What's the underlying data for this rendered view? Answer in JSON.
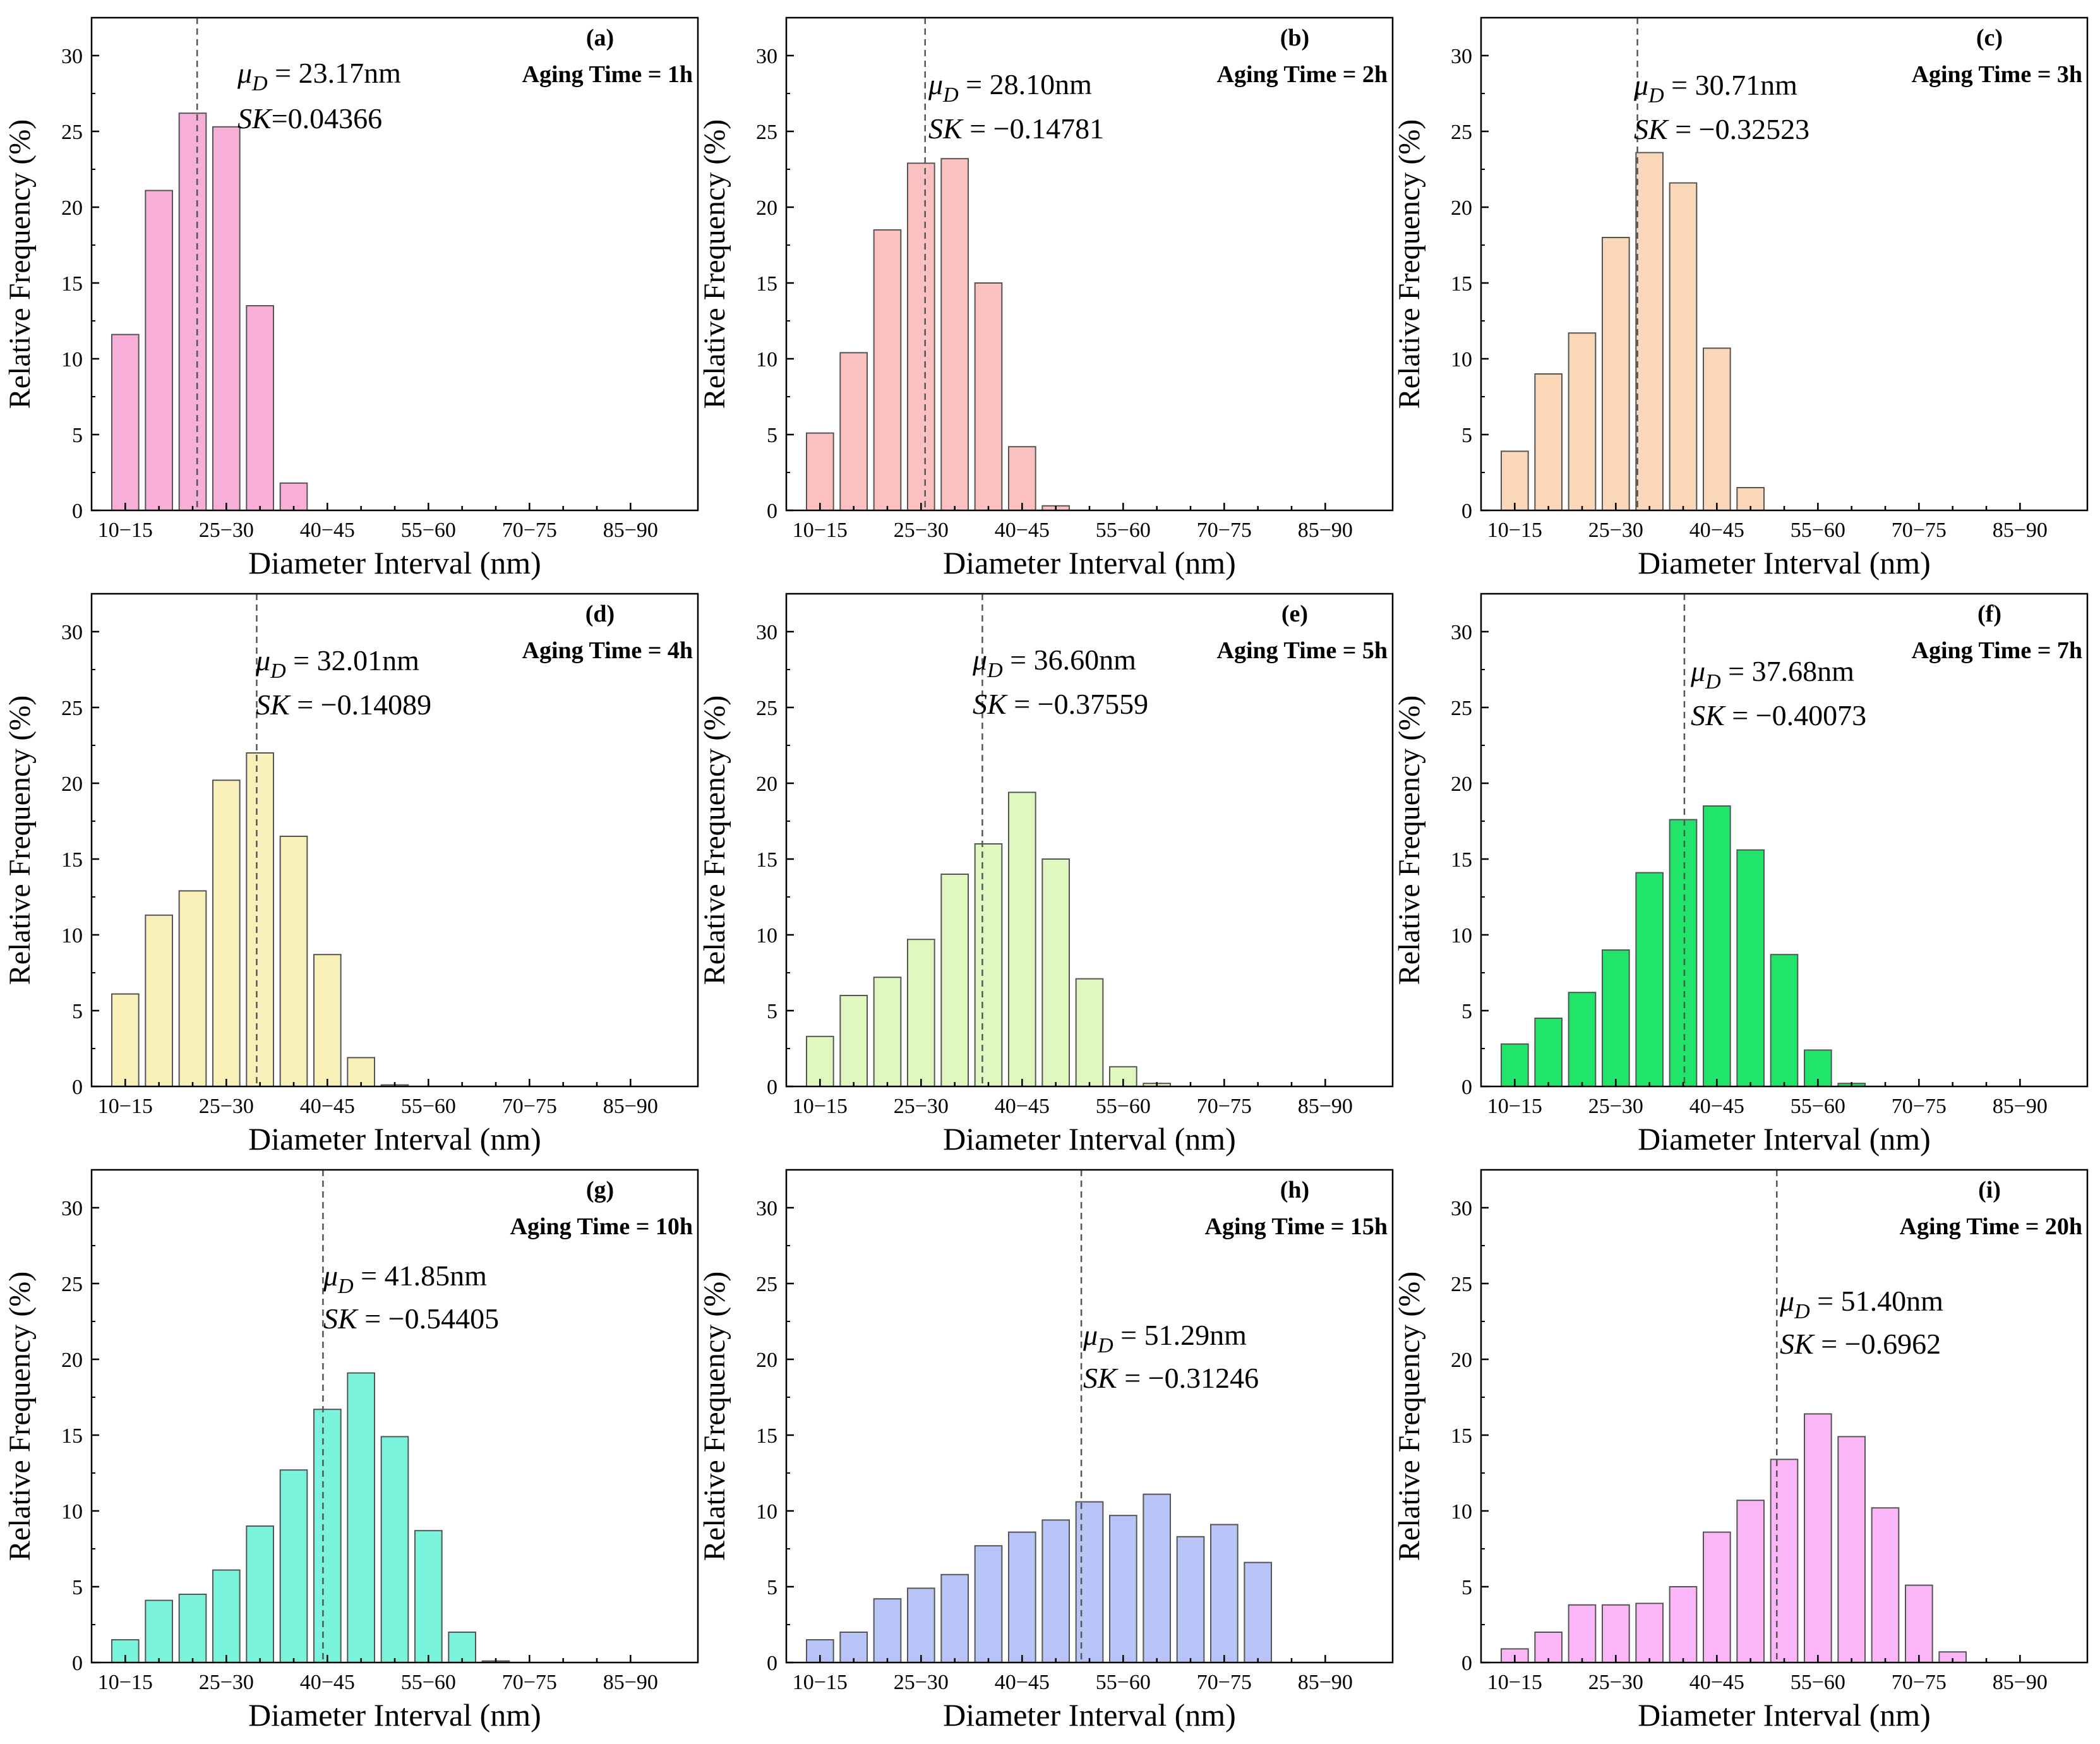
{
  "chart_data": [
    {
      "type": "bar",
      "panel": "(a)",
      "title": "Aging Time = 1h",
      "xlabel": "Diameter Interval (nm)",
      "ylabel": "Relative Frequency (%)",
      "ylim": [
        0,
        32.5
      ],
      "yticks": [
        "0",
        "5",
        "10",
        "15",
        "20",
        "25",
        "30"
      ],
      "xtick_labels": [
        "10−15",
        "25−30",
        "40−45",
        "55−60",
        "70−75",
        "85−90"
      ],
      "categories": [
        "10-15",
        "15-20",
        "20-25",
        "25-30",
        "30-35",
        "35-40",
        "40-45",
        "45-50",
        "50-55",
        "55-60",
        "60-65",
        "65-70",
        "70-75",
        "75-80",
        "80-85",
        "85-90"
      ],
      "values": [
        11.6,
        21.1,
        26.2,
        25.3,
        13.5,
        1.8,
        0,
        0,
        0,
        0,
        0,
        0,
        0,
        0,
        0,
        0
      ],
      "mean_line": 23.17,
      "color": "#f7aed9",
      "mu_symbol": "μ",
      "mu_sub": "D",
      "mu_text": " = 23.17nm",
      "sk_symbol": "SK",
      "sk_text": "=0.04366"
    },
    {
      "type": "bar",
      "panel": "(b)",
      "title": "Aging Time = 2h",
      "xlabel": "Diameter Interval (nm)",
      "ylabel": "Relative Frequency (%)",
      "ylim": [
        0,
        32.5
      ],
      "yticks": [
        "0",
        "5",
        "10",
        "15",
        "20",
        "25",
        "30"
      ],
      "xtick_labels": [
        "10−15",
        "25−30",
        "40−45",
        "55−60",
        "70−75",
        "85−90"
      ],
      "categories": [
        "10-15",
        "15-20",
        "20-25",
        "25-30",
        "30-35",
        "35-40",
        "40-45",
        "45-50",
        "50-55",
        "55-60",
        "60-65",
        "65-70",
        "70-75",
        "75-80",
        "80-85",
        "85-90"
      ],
      "values": [
        5.1,
        10.4,
        18.5,
        22.9,
        23.2,
        15.0,
        4.2,
        0.3,
        0,
        0,
        0,
        0,
        0,
        0,
        0,
        0
      ],
      "mean_line": 28.1,
      "color": "#fbc1c0",
      "mu_symbol": "μ",
      "mu_sub": "D",
      "mu_text": " = 28.10nm",
      "sk_symbol": "SK",
      "sk_text": " = −0.14781"
    },
    {
      "type": "bar",
      "panel": "(c)",
      "title": "Aging Time = 3h",
      "xlabel": "Diameter Interval (nm)",
      "ylabel": "Relative Frequency (%)",
      "ylim": [
        0,
        32.5
      ],
      "yticks": [
        "0",
        "5",
        "10",
        "15",
        "20",
        "25",
        "30"
      ],
      "xtick_labels": [
        "10−15",
        "25−30",
        "40−45",
        "55−60",
        "70−75",
        "85−90"
      ],
      "categories": [
        "10-15",
        "15-20",
        "20-25",
        "25-30",
        "30-35",
        "35-40",
        "40-45",
        "45-50",
        "50-55",
        "55-60",
        "60-65",
        "65-70",
        "70-75",
        "75-80",
        "80-85",
        "85-90"
      ],
      "values": [
        3.9,
        9.0,
        11.7,
        18.0,
        23.6,
        21.6,
        10.7,
        1.5,
        0,
        0,
        0,
        0,
        0,
        0,
        0,
        0
      ],
      "mean_line": 30.71,
      "color": "#fad7b8",
      "mu_symbol": "μ",
      "mu_sub": "D",
      "mu_text": " = 30.71nm",
      "sk_symbol": "SK",
      "sk_text": " = −0.32523"
    },
    {
      "type": "bar",
      "panel": "(d)",
      "title": "Aging Time = 4h",
      "xlabel": "Diameter Interval (nm)",
      "ylabel": "Relative Frequency (%)",
      "ylim": [
        0,
        32.5
      ],
      "yticks": [
        "0",
        "5",
        "10",
        "15",
        "20",
        "25",
        "30"
      ],
      "xtick_labels": [
        "10−15",
        "25−30",
        "40−45",
        "55−60",
        "70−75",
        "85−90"
      ],
      "categories": [
        "10-15",
        "15-20",
        "20-25",
        "25-30",
        "30-35",
        "35-40",
        "40-45",
        "45-50",
        "50-55",
        "55-60",
        "60-65",
        "65-70",
        "70-75",
        "75-80",
        "80-85",
        "85-90"
      ],
      "values": [
        6.1,
        11.3,
        12.9,
        20.2,
        22.0,
        16.5,
        8.7,
        1.9,
        0.1,
        0,
        0,
        0,
        0,
        0,
        0,
        0
      ],
      "mean_line": 32.01,
      "color": "#f8efb9",
      "mu_symbol": "μ",
      "mu_sub": "D",
      "mu_text": " = 32.01nm",
      "sk_symbol": "SK",
      "sk_text": " = −0.14089"
    },
    {
      "type": "bar",
      "panel": "(e)",
      "title": "Aging Time = 5h",
      "xlabel": "Diameter Interval (nm)",
      "ylabel": "Relative Frequency (%)",
      "ylim": [
        0,
        32.5
      ],
      "yticks": [
        "0",
        "5",
        "10",
        "15",
        "20",
        "25",
        "30"
      ],
      "xtick_labels": [
        "10−15",
        "25−30",
        "40−45",
        "55−60",
        "70−75",
        "85−90"
      ],
      "categories": [
        "10-15",
        "15-20",
        "20-25",
        "25-30",
        "30-35",
        "35-40",
        "40-45",
        "45-50",
        "50-55",
        "55-60",
        "60-65",
        "65-70",
        "70-75",
        "75-80",
        "80-85",
        "85-90"
      ],
      "values": [
        3.3,
        6.0,
        7.2,
        9.7,
        14.0,
        16.0,
        19.4,
        15.0,
        7.1,
        1.3,
        0.2,
        0,
        0,
        0,
        0,
        0
      ],
      "mean_line": 36.6,
      "color": "#def8bf",
      "mu_symbol": "μ",
      "mu_sub": "D",
      "mu_text": " = 36.60nm",
      "sk_symbol": "SK",
      "sk_text": " = −0.37559"
    },
    {
      "type": "bar",
      "panel": "(f)",
      "title": "Aging Time = 7h",
      "xlabel": "Diameter Interval (nm)",
      "ylabel": "Relative Frequency (%)",
      "ylim": [
        0,
        32.5
      ],
      "yticks": [
        "0",
        "5",
        "10",
        "15",
        "20",
        "25",
        "30"
      ],
      "xtick_labels": [
        "10−15",
        "25−30",
        "40−45",
        "55−60",
        "70−75",
        "85−90"
      ],
      "categories": [
        "10-15",
        "15-20",
        "20-25",
        "25-30",
        "30-35",
        "35-40",
        "40-45",
        "45-50",
        "50-55",
        "55-60",
        "60-65",
        "65-70",
        "70-75",
        "75-80",
        "80-85",
        "85-90"
      ],
      "values": [
        2.8,
        4.5,
        6.2,
        9.0,
        14.1,
        17.6,
        18.5,
        15.6,
        8.7,
        2.4,
        0.2,
        0,
        0,
        0,
        0,
        0
      ],
      "mean_line": 37.68,
      "color": "#21e56b",
      "mu_symbol": "μ",
      "mu_sub": "D",
      "mu_text": " = 37.68nm",
      "sk_symbol": "SK",
      "sk_text": " = −0.40073"
    },
    {
      "type": "bar",
      "panel": "(g)",
      "title": "Aging Time = 10h",
      "xlabel": "Diameter Interval (nm)",
      "ylabel": "Relative Frequency (%)",
      "ylim": [
        0,
        32.5
      ],
      "yticks": [
        "0",
        "5",
        "10",
        "15",
        "20",
        "25",
        "30"
      ],
      "xtick_labels": [
        "10−15",
        "25−30",
        "40−45",
        "55−60",
        "70−75",
        "85−90"
      ],
      "categories": [
        "10-15",
        "15-20",
        "20-25",
        "25-30",
        "30-35",
        "35-40",
        "40-45",
        "45-50",
        "50-55",
        "55-60",
        "60-65",
        "65-70",
        "70-75",
        "75-80",
        "80-85",
        "85-90"
      ],
      "values": [
        1.5,
        4.1,
        4.5,
        6.1,
        9.0,
        12.7,
        16.7,
        19.1,
        14.9,
        8.7,
        2.0,
        0.1,
        0,
        0,
        0,
        0
      ],
      "mean_line": 41.85,
      "color": "#7af3dc",
      "mu_symbol": "μ",
      "mu_sub": "D",
      "mu_text": " = 41.85nm",
      "sk_symbol": "SK",
      "sk_text": " = −0.54405"
    },
    {
      "type": "bar",
      "panel": "(h)",
      "title": "Aging Time = 15h",
      "xlabel": "Diameter Interval (nm)",
      "ylabel": "Relative Frequency (%)",
      "ylim": [
        0,
        32.5
      ],
      "yticks": [
        "0",
        "5",
        "10",
        "15",
        "20",
        "25",
        "30"
      ],
      "xtick_labels": [
        "10−15",
        "25−30",
        "40−45",
        "55−60",
        "70−75",
        "85−90"
      ],
      "categories": [
        "10-15",
        "15-20",
        "20-25",
        "25-30",
        "30-35",
        "35-40",
        "40-45",
        "45-50",
        "50-55",
        "55-60",
        "60-65",
        "65-70",
        "70-75",
        "75-80",
        "80-85",
        "85-90"
      ],
      "values": [
        1.5,
        2.0,
        4.2,
        4.9,
        5.8,
        7.7,
        8.6,
        9.4,
        10.6,
        9.7,
        11.1,
        8.3,
        9.1,
        6.6,
        0,
        0
      ],
      "mean_line": 51.29,
      "color": "#b8c3f7",
      "mu_symbol": "μ",
      "mu_sub": "D",
      "mu_text": " = 51.29nm",
      "sk_symbol": "SK",
      "sk_text": " = −0.31246"
    },
    {
      "type": "bar",
      "panel": "(i)",
      "title": "Aging Time = 20h",
      "xlabel": "Diameter Interval (nm)",
      "ylabel": "Relative Frequency (%)",
      "ylim": [
        0,
        32.5
      ],
      "yticks": [
        "0",
        "5",
        "10",
        "15",
        "20",
        "25",
        "30"
      ],
      "xtick_labels": [
        "10−15",
        "25−30",
        "40−45",
        "55−60",
        "70−75",
        "85−90"
      ],
      "categories": [
        "10-15",
        "15-20",
        "20-25",
        "25-30",
        "30-35",
        "35-40",
        "40-45",
        "45-50",
        "50-55",
        "55-60",
        "60-65",
        "65-70",
        "70-75",
        "75-80",
        "80-85",
        "85-90"
      ],
      "values": [
        0.9,
        2.0,
        3.8,
        3.8,
        3.9,
        5.0,
        8.6,
        10.7,
        13.4,
        16.4,
        14.9,
        10.2,
        5.1,
        0.7,
        0,
        0
      ],
      "mean_line": 51.4,
      "color": "#fab6f7",
      "mu_symbol": "μ",
      "mu_sub": "D",
      "mu_text": " = 51.40nm",
      "sk_symbol": "SK",
      "sk_text": " = −0.6962"
    }
  ]
}
